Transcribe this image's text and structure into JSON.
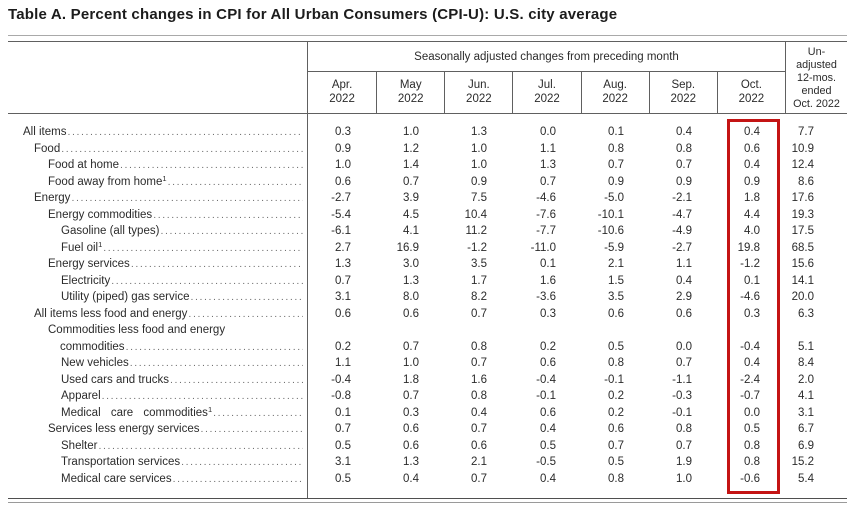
{
  "title": "Table A. Percent changes in CPI for All Urban Consumers (CPI-U): U.S. city average",
  "table": {
    "group_header": "Seasonally adjusted changes from preceding month",
    "month_columns": [
      {
        "abbr": "Apr.",
        "year": "2022"
      },
      {
        "abbr": "May",
        "year": "2022"
      },
      {
        "abbr": "Jun.",
        "year": "2022"
      },
      {
        "abbr": "Jul.",
        "year": "2022"
      },
      {
        "abbr": "Aug.",
        "year": "2022"
      },
      {
        "abbr": "Sep.",
        "year": "2022"
      },
      {
        "abbr": "Oct.",
        "year": "2022"
      }
    ],
    "unadjusted_header_lines": [
      "Un-",
      "adjusted",
      "12-mos.",
      "ended",
      "Oct. 2022"
    ],
    "highlight": {
      "column": "Oct. 2022",
      "color": "#c41414"
    },
    "rows": [
      {
        "label": "All items",
        "indent": 0,
        "values": [
          "0.3",
          "1.0",
          "1.3",
          "0.0",
          "0.1",
          "0.4",
          "0.4",
          "7.7"
        ]
      },
      {
        "label": "Food",
        "indent": 1,
        "values": [
          "0.9",
          "1.2",
          "1.0",
          "1.1",
          "0.8",
          "0.8",
          "0.6",
          "10.9"
        ]
      },
      {
        "label": "Food at home",
        "indent": 2,
        "values": [
          "1.0",
          "1.4",
          "1.0",
          "1.3",
          "0.7",
          "0.7",
          "0.4",
          "12.4"
        ]
      },
      {
        "label": "Food away from home",
        "sup": "1",
        "indent": 2,
        "values": [
          "0.6",
          "0.7",
          "0.9",
          "0.7",
          "0.9",
          "0.9",
          "0.9",
          "8.6"
        ]
      },
      {
        "label": "Energy",
        "indent": 1,
        "values": [
          "-2.7",
          "3.9",
          "7.5",
          "-4.6",
          "-5.0",
          "-2.1",
          "1.8",
          "17.6"
        ]
      },
      {
        "label": "Energy commodities",
        "indent": 2,
        "values": [
          "-5.4",
          "4.5",
          "10.4",
          "-7.6",
          "-10.1",
          "-4.7",
          "4.4",
          "19.3"
        ]
      },
      {
        "label": "Gasoline (all types)",
        "indent": 3,
        "values": [
          "-6.1",
          "4.1",
          "11.2",
          "-7.7",
          "-10.6",
          "-4.9",
          "4.0",
          "17.5"
        ]
      },
      {
        "label": "Fuel oil",
        "sup": "1",
        "indent": 3,
        "values": [
          "2.7",
          "16.9",
          "-1.2",
          "-11.0",
          "-5.9",
          "-2.7",
          "19.8",
          "68.5"
        ]
      },
      {
        "label": "Energy services",
        "indent": 2,
        "values": [
          "1.3",
          "3.0",
          "3.5",
          "0.1",
          "2.1",
          "1.1",
          "-1.2",
          "15.6"
        ]
      },
      {
        "label": "Electricity",
        "indent": 3,
        "values": [
          "0.7",
          "1.3",
          "1.7",
          "1.6",
          "1.5",
          "0.4",
          "0.1",
          "14.1"
        ]
      },
      {
        "label": "Utility (piped) gas service",
        "indent": 3,
        "values": [
          "3.1",
          "8.0",
          "8.2",
          "-3.6",
          "3.5",
          "2.9",
          "-4.6",
          "20.0"
        ]
      },
      {
        "label": "All items less food and energy",
        "indent": 1,
        "values": [
          "0.6",
          "0.6",
          "0.7",
          "0.3",
          "0.6",
          "0.6",
          "0.3",
          "6.3"
        ]
      },
      {
        "label_lines": [
          "Commodities less food and energy",
          "commodities"
        ],
        "indent": 2,
        "values": [
          "0.2",
          "0.7",
          "0.8",
          "0.2",
          "0.5",
          "0.0",
          "-0.4",
          "5.1"
        ]
      },
      {
        "label": "New vehicles",
        "indent": 3,
        "values": [
          "1.1",
          "1.0",
          "0.7",
          "0.6",
          "0.8",
          "0.7",
          "0.4",
          "8.4"
        ]
      },
      {
        "label": "Used cars and trucks",
        "indent": 3,
        "values": [
          "-0.4",
          "1.8",
          "1.6",
          "-0.4",
          "-0.1",
          "-1.1",
          "-2.4",
          "2.0"
        ]
      },
      {
        "label": "Apparel",
        "indent": 3,
        "values": [
          "-0.8",
          "0.7",
          "0.8",
          "-0.1",
          "0.2",
          "-0.3",
          "-0.7",
          "4.1"
        ]
      },
      {
        "label": "Medical care commodities",
        "sup": "1",
        "justified": true,
        "indent": 3,
        "values": [
          "0.1",
          "0.3",
          "0.4",
          "0.6",
          "0.2",
          "-0.1",
          "0.0",
          "3.1"
        ]
      },
      {
        "label": "Services less energy services",
        "indent": 2,
        "values": [
          "0.7",
          "0.6",
          "0.7",
          "0.4",
          "0.6",
          "0.8",
          "0.5",
          "6.7"
        ]
      },
      {
        "label": "Shelter",
        "indent": 3,
        "values": [
          "0.5",
          "0.6",
          "0.6",
          "0.5",
          "0.7",
          "0.7",
          "0.8",
          "6.9"
        ]
      },
      {
        "label": "Transportation services",
        "indent": 3,
        "values": [
          "3.1",
          "1.3",
          "2.1",
          "-0.5",
          "0.5",
          "1.9",
          "0.8",
          "15.2"
        ]
      },
      {
        "label": "Medical care services",
        "indent": 3,
        "values": [
          "0.5",
          "0.4",
          "0.7",
          "0.4",
          "0.8",
          "1.0",
          "-0.6",
          "5.4"
        ]
      }
    ]
  }
}
